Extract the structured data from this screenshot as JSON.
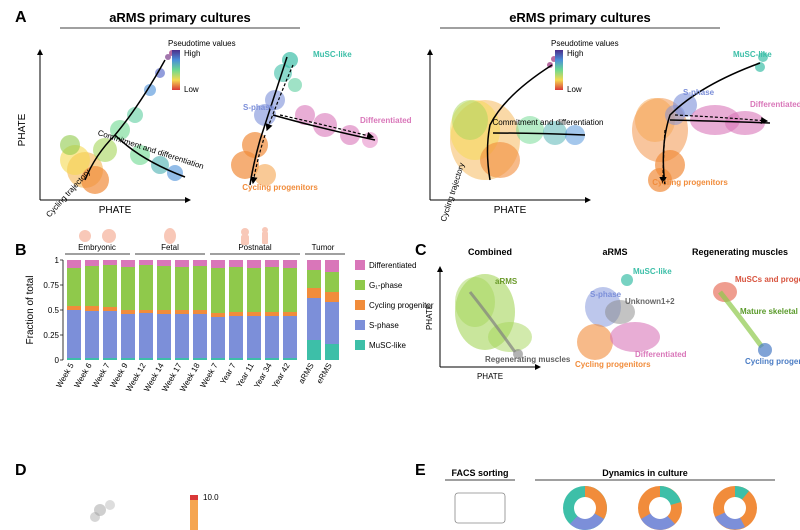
{
  "labels": {
    "A": "A",
    "B": "B",
    "C": "C",
    "D": "D",
    "E": "E"
  },
  "panelA": {
    "left_title": "aRMS primary cultures",
    "right_title": "eRMS primary cultures",
    "axis_x": "PHATE",
    "axis_y": "PHATE",
    "pseudotime_label": "Pseudotime\nvalues",
    "high": "High",
    "low": "Low",
    "populations": {
      "musc": "MuSC-like",
      "sphase": "S-phase",
      "diff": "Differentiated",
      "cycprog": "Cycling\nprogenitors"
    },
    "traj_labels": {
      "cycling": "Cycling\ntrajectory",
      "commit": "Commitment and\ndifferentiation"
    }
  },
  "panelB": {
    "ylabel": "Fraction of total",
    "stages": [
      "Embryonic",
      "Fetal",
      "Postnatal",
      "Tumor"
    ],
    "xlabels": [
      "Week 5",
      "Week 6",
      "Week 7",
      "Week 9",
      "Week 12",
      "Week 14",
      "Week 17",
      "Week 18",
      "Week 7",
      "Year 7",
      "Year 11",
      "Year 34",
      "Year 42",
      "aRMS",
      "eRMS"
    ],
    "yticks": [
      "0",
      "0.25",
      "0.5",
      "0.75",
      "1"
    ],
    "legend": [
      "Differentiated",
      "G₁-phase",
      "Cycling\nprogenitor",
      "S-phase",
      "MuSC-like"
    ],
    "legend_colors": [
      "#d976b9",
      "#8fc94b",
      "#f18c3b",
      "#7c8fd9",
      "#3dbfa8"
    ],
    "bars": [
      {
        "diff": 0.08,
        "g1": 0.38,
        "cyc": 0.04,
        "s": 0.48,
        "musc": 0.02
      },
      {
        "diff": 0.06,
        "g1": 0.4,
        "cyc": 0.05,
        "s": 0.47,
        "musc": 0.02
      },
      {
        "diff": 0.05,
        "g1": 0.42,
        "cyc": 0.04,
        "s": 0.47,
        "musc": 0.02
      },
      {
        "diff": 0.07,
        "g1": 0.43,
        "cyc": 0.04,
        "s": 0.44,
        "musc": 0.02
      },
      {
        "diff": 0.05,
        "g1": 0.45,
        "cyc": 0.03,
        "s": 0.45,
        "musc": 0.02
      },
      {
        "diff": 0.06,
        "g1": 0.44,
        "cyc": 0.04,
        "s": 0.44,
        "musc": 0.02
      },
      {
        "diff": 0.07,
        "g1": 0.43,
        "cyc": 0.04,
        "s": 0.44,
        "musc": 0.02
      },
      {
        "diff": 0.06,
        "g1": 0.44,
        "cyc": 0.04,
        "s": 0.44,
        "musc": 0.02
      },
      {
        "diff": 0.08,
        "g1": 0.45,
        "cyc": 0.04,
        "s": 0.41,
        "musc": 0.02
      },
      {
        "diff": 0.07,
        "g1": 0.45,
        "cyc": 0.04,
        "s": 0.42,
        "musc": 0.02
      },
      {
        "diff": 0.08,
        "g1": 0.44,
        "cyc": 0.04,
        "s": 0.42,
        "musc": 0.02
      },
      {
        "diff": 0.07,
        "g1": 0.45,
        "cyc": 0.04,
        "s": 0.42,
        "musc": 0.02
      },
      {
        "diff": 0.08,
        "g1": 0.44,
        "cyc": 0.04,
        "s": 0.42,
        "musc": 0.02
      },
      {
        "diff": 0.1,
        "g1": 0.18,
        "cyc": 0.1,
        "s": 0.42,
        "musc": 0.2
      },
      {
        "diff": 0.12,
        "g1": 0.2,
        "cyc": 0.1,
        "s": 0.42,
        "musc": 0.16
      }
    ]
  },
  "panelC": {
    "titles": [
      "Combined",
      "aRMS",
      "Regenerating muscles"
    ],
    "axis": "PHATE",
    "combined_legend": [
      "aRMS",
      "Regenerating\nmuscles"
    ],
    "combined_colors": [
      "#a5d65a",
      "#808080"
    ],
    "arms_legend": [
      "MuSC-like",
      "S-phase",
      "Unknown1+2",
      "Cycling\nprogenitors",
      "Differentiated"
    ],
    "arms_colors": [
      "#3dbfa8",
      "#7c8fd9",
      "#888888",
      "#f18c3b",
      "#d976b9"
    ],
    "regen_legend": [
      "MuSCs and\nprogenitors",
      "Mature skeletal\nmuscles",
      "Cycling\nprogenitors"
    ],
    "regen_colors": [
      "#e8745f",
      "#8fc94b",
      "#4a7cc4"
    ]
  },
  "panelE": {
    "facs": "FACS sorting",
    "dynamics": "Dynamics in culture"
  },
  "colors": {
    "musc": "#3dbfa8",
    "sphase": "#7c8fd9",
    "diff": "#d976b9",
    "cycprog": "#f18c3b",
    "g1": "#8fc94b"
  }
}
